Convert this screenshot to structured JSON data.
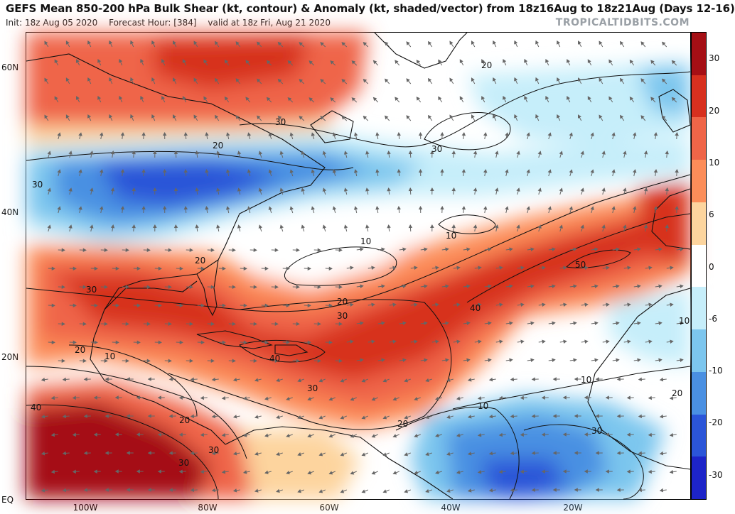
{
  "header": {
    "title": "GEFS Mean 850-200 hPa Bulk Shear (kt, contour) & Anomaly (kt, shaded/vector) from 18z16Aug to 18z21Aug (Days 12-16)",
    "init": "Init: 18z Aug 05 2020",
    "forecast_hour": "Forecast Hour: [384]",
    "valid": "valid at 18z Fri, Aug 21 2020",
    "brand": "TROPICALTIDBITS.COM"
  },
  "axes": {
    "lat_labels": [
      "60N",
      "40N",
      "20N",
      "EQ"
    ],
    "lon_labels": [
      "100W",
      "80W",
      "60W",
      "40W",
      "20W"
    ]
  },
  "colorbar": {
    "ticks": [
      "30",
      "20",
      "10",
      "6",
      "0",
      "-6",
      "-10",
      "-20",
      "-30"
    ],
    "colors": [
      "#a50f15",
      "#d7301f",
      "#ef6548",
      "#fc8d59",
      "#fdd49e",
      "#ffffff",
      "#c6eefa",
      "#7cc6ee",
      "#4a90e2",
      "#2b55d8",
      "#1d24c8"
    ]
  },
  "contour_labels": [
    "20",
    "30",
    "30",
    "20",
    "30",
    "10",
    "10",
    "50",
    "40",
    "20",
    "30",
    "30",
    "20",
    "10",
    "40",
    "30",
    "20",
    "10",
    "10",
    "20",
    "30",
    "40",
    "20",
    "30",
    "10",
    "20",
    "30"
  ]
}
